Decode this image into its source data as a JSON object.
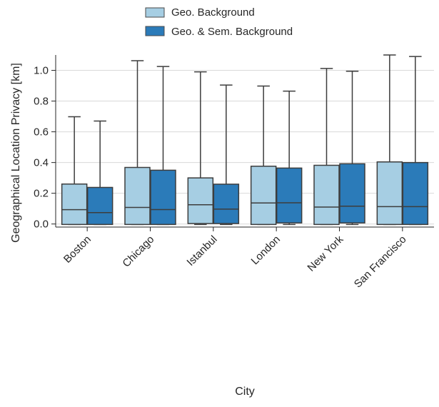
{
  "chart_data": {
    "type": "box",
    "title": "",
    "xlabel": "City",
    "ylabel": "Geographical Location Privacy [km]",
    "ylim": [
      -0.02,
      1.1
    ],
    "y_ticks": [
      0.0,
      0.2,
      0.4,
      0.6,
      0.8,
      1.0
    ],
    "y_tick_labels": [
      "0.0",
      "0.2",
      "0.4",
      "0.6",
      "0.8",
      "1.0"
    ],
    "grid": "horizontal",
    "legend_position": "top",
    "categories": [
      "Boston",
      "Chicago",
      "Istanbul",
      "London",
      "New York",
      "San Francisco"
    ],
    "series": [
      {
        "name": "Geo. Background",
        "color": "#a6cee3",
        "boxes": [
          {
            "whisker_low": -0.003,
            "q1": -0.003,
            "median": 0.093,
            "q3": 0.26,
            "whisker_high": 0.698
          },
          {
            "whisker_low": -0.003,
            "q1": -0.003,
            "median": 0.108,
            "q3": 0.368,
            "whisker_high": 1.063
          },
          {
            "whisker_low": -0.003,
            "q1": 0.003,
            "median": 0.125,
            "q3": 0.3,
            "whisker_high": 0.99
          },
          {
            "whisker_low": -0.003,
            "q1": -0.003,
            "median": 0.137,
            "q3": 0.376,
            "whisker_high": 0.898
          },
          {
            "whisker_low": -0.003,
            "q1": -0.003,
            "median": 0.11,
            "q3": 0.382,
            "whisker_high": 1.012
          },
          {
            "whisker_low": -0.003,
            "q1": -0.003,
            "median": 0.113,
            "q3": 0.404,
            "whisker_high": 1.1
          }
        ]
      },
      {
        "name": "Geo. & Sem. Background",
        "color": "#2b7bb9",
        "boxes": [
          {
            "whisker_low": -0.003,
            "q1": -0.003,
            "median": 0.074,
            "q3": 0.238,
            "whisker_high": 0.67
          },
          {
            "whisker_low": -0.003,
            "q1": -0.003,
            "median": 0.094,
            "q3": 0.35,
            "whisker_high": 1.025
          },
          {
            "whisker_low": -0.003,
            "q1": 0.003,
            "median": 0.097,
            "q3": 0.259,
            "whisker_high": 0.904
          },
          {
            "whisker_low": -0.003,
            "q1": 0.007,
            "median": 0.138,
            "q3": 0.364,
            "whisker_high": 0.865
          },
          {
            "whisker_low": -0.003,
            "q1": 0.007,
            "median": 0.116,
            "q3": 0.392,
            "whisker_high": 0.994
          },
          {
            "whisker_low": -0.003,
            "q1": -0.003,
            "median": 0.113,
            "q3": 0.4,
            "whisker_high": 1.09
          }
        ]
      }
    ]
  }
}
